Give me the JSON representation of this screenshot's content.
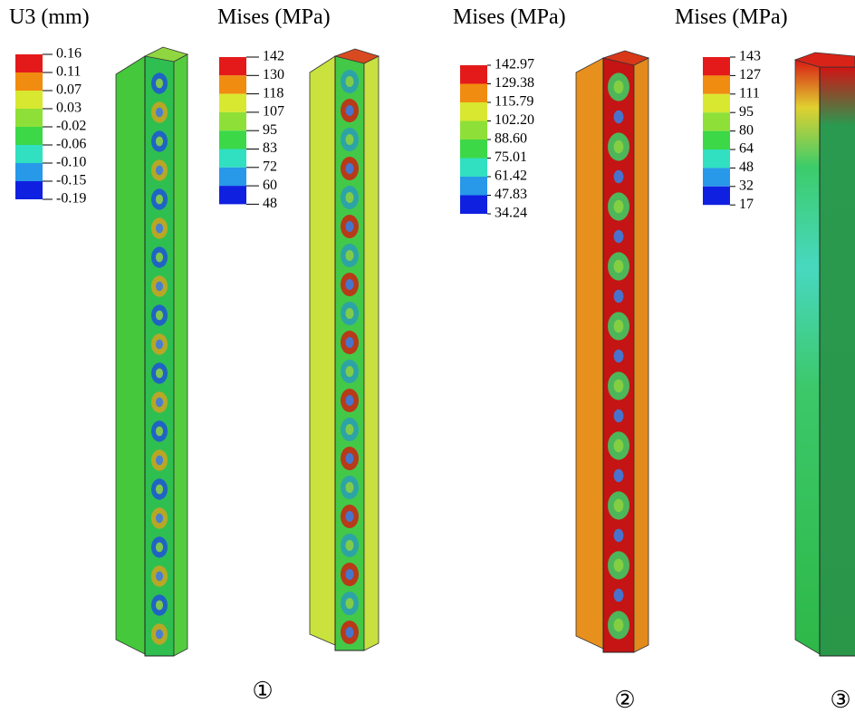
{
  "panels": [
    {
      "legend": {
        "title": "U3 (mm)",
        "labels": [
          "0.16",
          "0.11",
          "0.07",
          "0.03",
          "-0.02",
          "-0.06",
          "-0.10",
          "-0.15",
          "-0.19"
        ]
      }
    },
    {
      "legend": {
        "title": "Mises (MPa)",
        "labels": [
          "142",
          "130",
          "118",
          "107",
          "95",
          "83",
          "72",
          "60",
          "48"
        ]
      }
    },
    {
      "legend": {
        "title": "Mises (MPa)",
        "labels": [
          "142.97",
          "129.38",
          "115.79",
          "102.20",
          "88.60",
          "75.01",
          "61.42",
          "47.83",
          "34.24"
        ]
      }
    },
    {
      "legend": {
        "title": "Mises (MPa)",
        "labels": [
          "143",
          "127",
          "111",
          "95",
          "80",
          "64",
          "48",
          "32",
          "17"
        ]
      }
    }
  ],
  "markers": [
    "①",
    "②",
    "③"
  ]
}
